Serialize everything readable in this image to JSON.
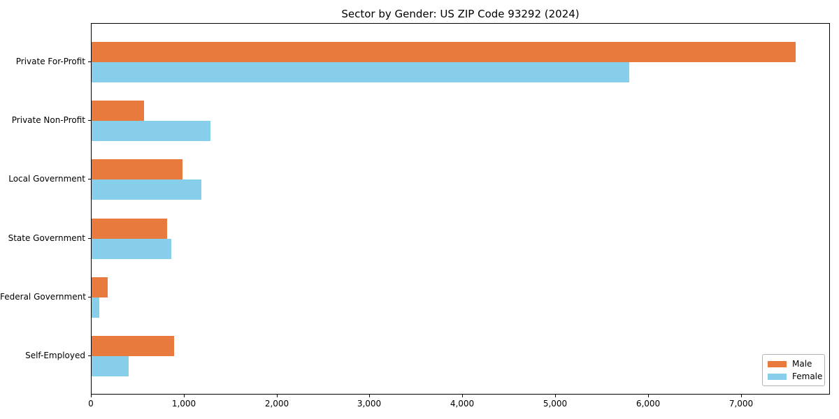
{
  "chart_data": {
    "type": "bar",
    "orientation": "horizontal",
    "title": "Sector by Gender: US ZIP Code 93292 (2024)",
    "categories": [
      "Private For-Profit",
      "Private Non-Profit",
      "Local Government",
      "State Government",
      "Federal Government",
      "Self-Employed"
    ],
    "series": [
      {
        "name": "Male",
        "color": "#e87a3d",
        "values": [
          7580,
          565,
          980,
          815,
          175,
          885
        ]
      },
      {
        "name": "Female",
        "color": "#87ceeb",
        "values": [
          5790,
          1280,
          1180,
          855,
          80,
          400
        ]
      }
    ],
    "xlim": [
      0,
      7960
    ],
    "x_ticks": [
      0,
      1000,
      2000,
      3000,
      4000,
      5000,
      6000,
      7000
    ],
    "x_tick_labels": [
      "0",
      "1,000",
      "2,000",
      "3,000",
      "4,000",
      "5,000",
      "6,000",
      "7,000"
    ],
    "xlabel": "",
    "ylabel": "",
    "grid": false,
    "legend": {
      "position": "lower right"
    }
  },
  "colors": {
    "male": "#e87a3d",
    "female": "#87ceeb",
    "spine": "#000000",
    "legend_border": "#b3b3b3",
    "background": "#ffffff"
  }
}
